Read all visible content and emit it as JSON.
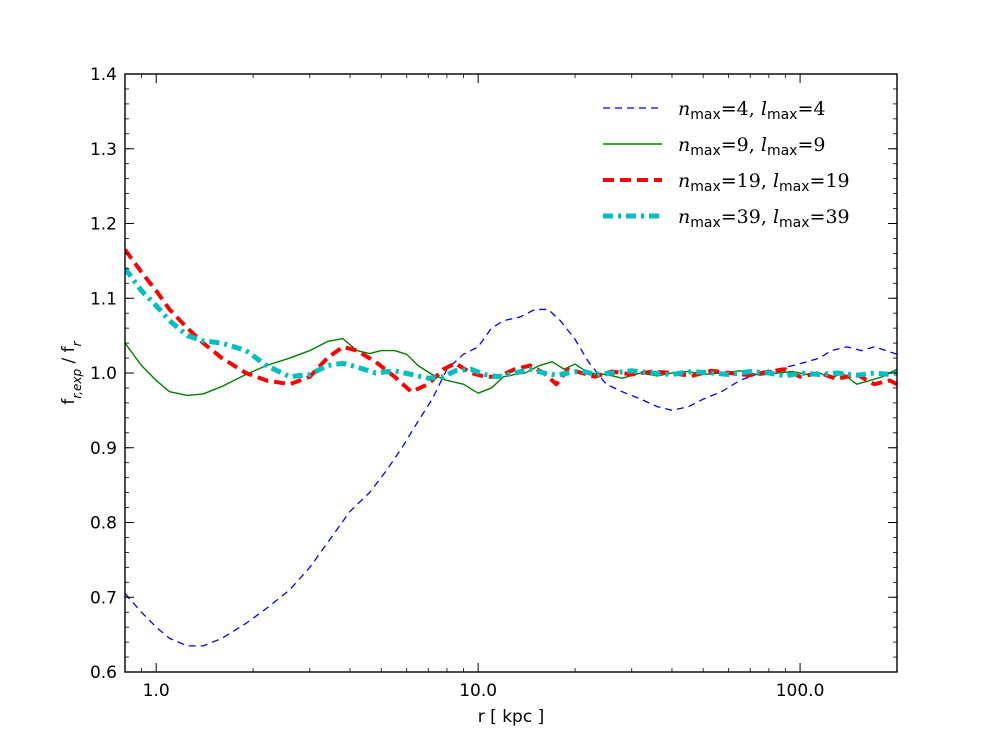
{
  "chart_data": {
    "type": "line",
    "xscale": "log",
    "xlim": [
      0.8,
      200
    ],
    "ylim": [
      0.6,
      1.4
    ],
    "xlabel": "r [ kpc ]",
    "ylabel": "f_{r,exp} / f_r",
    "x_ticks": [
      1,
      10,
      100
    ],
    "x_tick_labels": [
      "1.0",
      "10.0",
      "100.0"
    ],
    "y_ticks": [
      0.6,
      0.7,
      0.8,
      0.9,
      1.0,
      1.1,
      1.2,
      1.3,
      1.4
    ],
    "y_tick_labels": [
      "0.6",
      "0.7",
      "0.8",
      "0.9",
      "1.0",
      "1.1",
      "1.2",
      "1.3",
      "1.4"
    ],
    "grid": false,
    "legend_position": "top-right",
    "series": [
      {
        "name": "n_max=4, l_max=4",
        "n_label": "4",
        "l_label": "4",
        "color": "#0000ff",
        "style": "thin-dashed",
        "x": [
          0.8,
          0.9,
          1.0,
          1.1,
          1.25,
          1.4,
          1.6,
          1.9,
          2.2,
          2.6,
          3.0,
          3.5,
          4.0,
          4.6,
          5.2,
          5.8,
          6.5,
          7.2,
          8.0,
          9.0,
          10.0,
          11.0,
          12.0,
          13.5,
          15.0,
          16.5,
          18.0,
          20.0,
          22.0,
          25.0,
          28.0,
          32.0,
          36.0,
          40.0,
          45.0,
          50.0,
          57.0,
          65.0,
          75.0,
          85.0,
          95.0,
          105.0,
          115.0,
          125.0,
          140.0,
          155.0,
          170.0,
          185.0,
          200.0
        ],
        "y": [
          0.705,
          0.68,
          0.66,
          0.645,
          0.635,
          0.635,
          0.645,
          0.665,
          0.685,
          0.71,
          0.74,
          0.78,
          0.815,
          0.84,
          0.87,
          0.9,
          0.935,
          0.965,
          1.005,
          1.025,
          1.035,
          1.06,
          1.07,
          1.075,
          1.085,
          1.085,
          1.07,
          1.045,
          1.015,
          0.985,
          0.975,
          0.965,
          0.955,
          0.95,
          0.955,
          0.965,
          0.975,
          0.99,
          1.0,
          1.005,
          1.01,
          1.015,
          1.02,
          1.03,
          1.035,
          1.03,
          1.035,
          1.03,
          1.025
        ]
      },
      {
        "name": "n_max=9, l_max=9",
        "n_label": "9",
        "l_label": "9",
        "color": "#008000",
        "style": "solid",
        "x": [
          0.8,
          0.9,
          1.0,
          1.1,
          1.25,
          1.4,
          1.6,
          1.9,
          2.2,
          2.6,
          3.0,
          3.4,
          3.8,
          4.2,
          4.6,
          5.0,
          5.5,
          6.0,
          6.5,
          7.2,
          8.0,
          9.0,
          10.0,
          11.0,
          12.0,
          13.0,
          14.0,
          15.5,
          17.0,
          18.5,
          20.0,
          22.0,
          25.0,
          28.0,
          32.0,
          36.0,
          40.0,
          45.0,
          50.0,
          57.0,
          65.0,
          75.0,
          85.0,
          95.0,
          105.0,
          115.0,
          125.0,
          135.0,
          150.0,
          165.0,
          180.0,
          200.0
        ],
        "y": [
          1.04,
          1.01,
          0.99,
          0.975,
          0.97,
          0.972,
          0.982,
          0.998,
          1.01,
          1.02,
          1.03,
          1.042,
          1.046,
          1.03,
          1.026,
          1.03,
          1.03,
          1.025,
          1.01,
          0.998,
          0.99,
          0.985,
          0.973,
          0.98,
          0.995,
          0.998,
          1.0,
          1.01,
          1.015,
          1.005,
          1.012,
          1.0,
          0.998,
          0.993,
          1.0,
          0.996,
          1.0,
          1.002,
          0.998,
          1.0,
          1.003,
          0.997,
          1.0,
          1.002,
          0.998,
          1.0,
          0.993,
          1.0,
          0.985,
          0.99,
          0.995,
          1.005
        ]
      },
      {
        "name": "n_max=19, l_max=19",
        "n_label": "19",
        "l_label": "19",
        "color": "#ff0000",
        "style": "thick-dashed",
        "x": [
          0.8,
          0.9,
          1.0,
          1.1,
          1.25,
          1.4,
          1.6,
          1.9,
          2.2,
          2.6,
          3.0,
          3.4,
          3.8,
          4.2,
          4.8,
          5.5,
          6.2,
          7.0,
          7.8,
          8.5,
          9.5,
          10.5,
          11.5,
          13.0,
          14.5,
          16.0,
          17.5,
          19.0,
          21.0,
          23.0,
          26.0,
          30.0,
          35.0,
          40.0,
          46.0,
          53.0,
          60.0,
          70.0,
          80.0,
          90.0,
          100.0,
          115.0,
          130.0,
          150.0,
          170.0,
          190.0,
          200.0
        ],
        "y": [
          1.165,
          1.135,
          1.11,
          1.085,
          1.06,
          1.04,
          1.02,
          1.0,
          0.99,
          0.985,
          0.995,
          1.02,
          1.035,
          1.03,
          1.015,
          0.995,
          0.975,
          0.985,
          1.005,
          1.013,
          1.0,
          0.995,
          0.995,
          1.005,
          1.01,
          1.0,
          0.985,
          1.005,
          1.0,
          0.995,
          1.002,
          0.998,
          1.002,
          1.0,
          0.996,
          1.003,
          1.0,
          0.997,
          1.002,
          1.005,
          0.995,
          1.0,
          0.992,
          0.998,
          0.985,
          0.99,
          0.985
        ]
      },
      {
        "name": "n_max=39, l_max=39",
        "n_label": "39",
        "l_label": "39",
        "color": "#00bfbf",
        "style": "thick-dashdot",
        "x": [
          0.8,
          0.9,
          1.0,
          1.1,
          1.25,
          1.4,
          1.6,
          1.9,
          2.2,
          2.6,
          3.0,
          3.4,
          3.8,
          4.2,
          4.8,
          5.5,
          6.2,
          7.0,
          7.8,
          8.5,
          9.5,
          10.5,
          11.5,
          13.0,
          14.5,
          16.0,
          17.5,
          19.0,
          21.0,
          23.0,
          26.0,
          30.0,
          35.0,
          40.0,
          46.0,
          53.0,
          60.0,
          70.0,
          80.0,
          90.0,
          100.0,
          115.0,
          130.0,
          150.0,
          170.0,
          190.0,
          200.0
        ],
        "y": [
          1.14,
          1.11,
          1.09,
          1.07,
          1.05,
          1.043,
          1.04,
          1.03,
          1.01,
          0.995,
          0.998,
          1.01,
          1.013,
          1.008,
          1.0,
          1.003,
          0.998,
          0.993,
          0.995,
          1.003,
          1.005,
          0.998,
          0.995,
          1.0,
          1.005,
          1.0,
          0.997,
          1.0,
          1.003,
          0.998,
          1.0,
          1.003,
          1.0,
          0.998,
          1.002,
          1.0,
          0.998,
          1.002,
          1.0,
          0.996,
          1.0,
          0.998,
          1.0,
          0.997,
          1.0,
          0.998,
          1.0
        ]
      }
    ]
  }
}
